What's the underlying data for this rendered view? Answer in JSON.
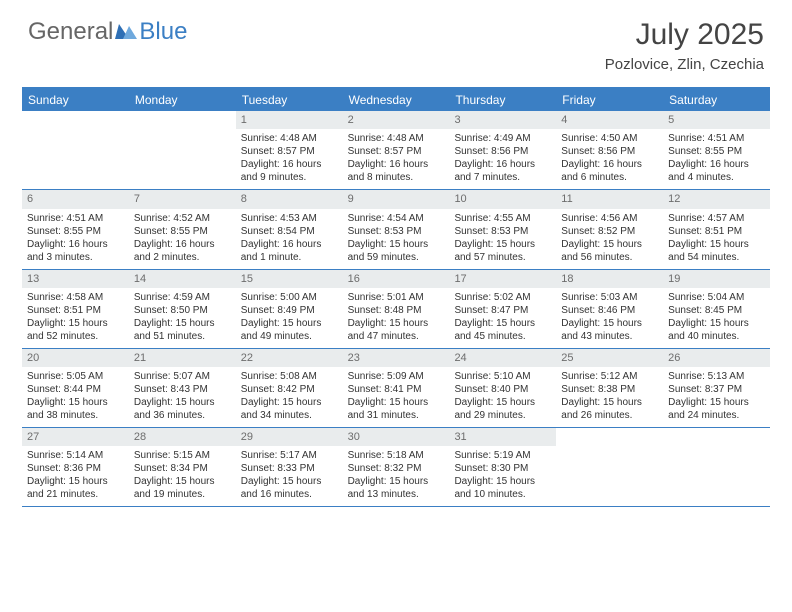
{
  "logo": {
    "general": "General",
    "blue": "Blue"
  },
  "title": {
    "month": "July 2025",
    "location": "Pozlovice, Zlin, Czechia"
  },
  "colors": {
    "header_bar": "#3b7fc4",
    "daynum_bg": "#e9eced",
    "text": "#333333",
    "logo_blue": "#3b7fc4",
    "logo_gray": "#666666"
  },
  "dow": [
    "Sunday",
    "Monday",
    "Tuesday",
    "Wednesday",
    "Thursday",
    "Friday",
    "Saturday"
  ],
  "weeks": [
    [
      {
        "n": "",
        "sr": "",
        "ss": "",
        "dl": ""
      },
      {
        "n": "",
        "sr": "",
        "ss": "",
        "dl": ""
      },
      {
        "n": "1",
        "sr": "Sunrise: 4:48 AM",
        "ss": "Sunset: 8:57 PM",
        "dl": "Daylight: 16 hours and 9 minutes."
      },
      {
        "n": "2",
        "sr": "Sunrise: 4:48 AM",
        "ss": "Sunset: 8:57 PM",
        "dl": "Daylight: 16 hours and 8 minutes."
      },
      {
        "n": "3",
        "sr": "Sunrise: 4:49 AM",
        "ss": "Sunset: 8:56 PM",
        "dl": "Daylight: 16 hours and 7 minutes."
      },
      {
        "n": "4",
        "sr": "Sunrise: 4:50 AM",
        "ss": "Sunset: 8:56 PM",
        "dl": "Daylight: 16 hours and 6 minutes."
      },
      {
        "n": "5",
        "sr": "Sunrise: 4:51 AM",
        "ss": "Sunset: 8:55 PM",
        "dl": "Daylight: 16 hours and 4 minutes."
      }
    ],
    [
      {
        "n": "6",
        "sr": "Sunrise: 4:51 AM",
        "ss": "Sunset: 8:55 PM",
        "dl": "Daylight: 16 hours and 3 minutes."
      },
      {
        "n": "7",
        "sr": "Sunrise: 4:52 AM",
        "ss": "Sunset: 8:55 PM",
        "dl": "Daylight: 16 hours and 2 minutes."
      },
      {
        "n": "8",
        "sr": "Sunrise: 4:53 AM",
        "ss": "Sunset: 8:54 PM",
        "dl": "Daylight: 16 hours and 1 minute."
      },
      {
        "n": "9",
        "sr": "Sunrise: 4:54 AM",
        "ss": "Sunset: 8:53 PM",
        "dl": "Daylight: 15 hours and 59 minutes."
      },
      {
        "n": "10",
        "sr": "Sunrise: 4:55 AM",
        "ss": "Sunset: 8:53 PM",
        "dl": "Daylight: 15 hours and 57 minutes."
      },
      {
        "n": "11",
        "sr": "Sunrise: 4:56 AM",
        "ss": "Sunset: 8:52 PM",
        "dl": "Daylight: 15 hours and 56 minutes."
      },
      {
        "n": "12",
        "sr": "Sunrise: 4:57 AM",
        "ss": "Sunset: 8:51 PM",
        "dl": "Daylight: 15 hours and 54 minutes."
      }
    ],
    [
      {
        "n": "13",
        "sr": "Sunrise: 4:58 AM",
        "ss": "Sunset: 8:51 PM",
        "dl": "Daylight: 15 hours and 52 minutes."
      },
      {
        "n": "14",
        "sr": "Sunrise: 4:59 AM",
        "ss": "Sunset: 8:50 PM",
        "dl": "Daylight: 15 hours and 51 minutes."
      },
      {
        "n": "15",
        "sr": "Sunrise: 5:00 AM",
        "ss": "Sunset: 8:49 PM",
        "dl": "Daylight: 15 hours and 49 minutes."
      },
      {
        "n": "16",
        "sr": "Sunrise: 5:01 AM",
        "ss": "Sunset: 8:48 PM",
        "dl": "Daylight: 15 hours and 47 minutes."
      },
      {
        "n": "17",
        "sr": "Sunrise: 5:02 AM",
        "ss": "Sunset: 8:47 PM",
        "dl": "Daylight: 15 hours and 45 minutes."
      },
      {
        "n": "18",
        "sr": "Sunrise: 5:03 AM",
        "ss": "Sunset: 8:46 PM",
        "dl": "Daylight: 15 hours and 43 minutes."
      },
      {
        "n": "19",
        "sr": "Sunrise: 5:04 AM",
        "ss": "Sunset: 8:45 PM",
        "dl": "Daylight: 15 hours and 40 minutes."
      }
    ],
    [
      {
        "n": "20",
        "sr": "Sunrise: 5:05 AM",
        "ss": "Sunset: 8:44 PM",
        "dl": "Daylight: 15 hours and 38 minutes."
      },
      {
        "n": "21",
        "sr": "Sunrise: 5:07 AM",
        "ss": "Sunset: 8:43 PM",
        "dl": "Daylight: 15 hours and 36 minutes."
      },
      {
        "n": "22",
        "sr": "Sunrise: 5:08 AM",
        "ss": "Sunset: 8:42 PM",
        "dl": "Daylight: 15 hours and 34 minutes."
      },
      {
        "n": "23",
        "sr": "Sunrise: 5:09 AM",
        "ss": "Sunset: 8:41 PM",
        "dl": "Daylight: 15 hours and 31 minutes."
      },
      {
        "n": "24",
        "sr": "Sunrise: 5:10 AM",
        "ss": "Sunset: 8:40 PM",
        "dl": "Daylight: 15 hours and 29 minutes."
      },
      {
        "n": "25",
        "sr": "Sunrise: 5:12 AM",
        "ss": "Sunset: 8:38 PM",
        "dl": "Daylight: 15 hours and 26 minutes."
      },
      {
        "n": "26",
        "sr": "Sunrise: 5:13 AM",
        "ss": "Sunset: 8:37 PM",
        "dl": "Daylight: 15 hours and 24 minutes."
      }
    ],
    [
      {
        "n": "27",
        "sr": "Sunrise: 5:14 AM",
        "ss": "Sunset: 8:36 PM",
        "dl": "Daylight: 15 hours and 21 minutes."
      },
      {
        "n": "28",
        "sr": "Sunrise: 5:15 AM",
        "ss": "Sunset: 8:34 PM",
        "dl": "Daylight: 15 hours and 19 minutes."
      },
      {
        "n": "29",
        "sr": "Sunrise: 5:17 AM",
        "ss": "Sunset: 8:33 PM",
        "dl": "Daylight: 15 hours and 16 minutes."
      },
      {
        "n": "30",
        "sr": "Sunrise: 5:18 AM",
        "ss": "Sunset: 8:32 PM",
        "dl": "Daylight: 15 hours and 13 minutes."
      },
      {
        "n": "31",
        "sr": "Sunrise: 5:19 AM",
        "ss": "Sunset: 8:30 PM",
        "dl": "Daylight: 15 hours and 10 minutes."
      },
      {
        "n": "",
        "sr": "",
        "ss": "",
        "dl": ""
      },
      {
        "n": "",
        "sr": "",
        "ss": "",
        "dl": ""
      }
    ]
  ]
}
